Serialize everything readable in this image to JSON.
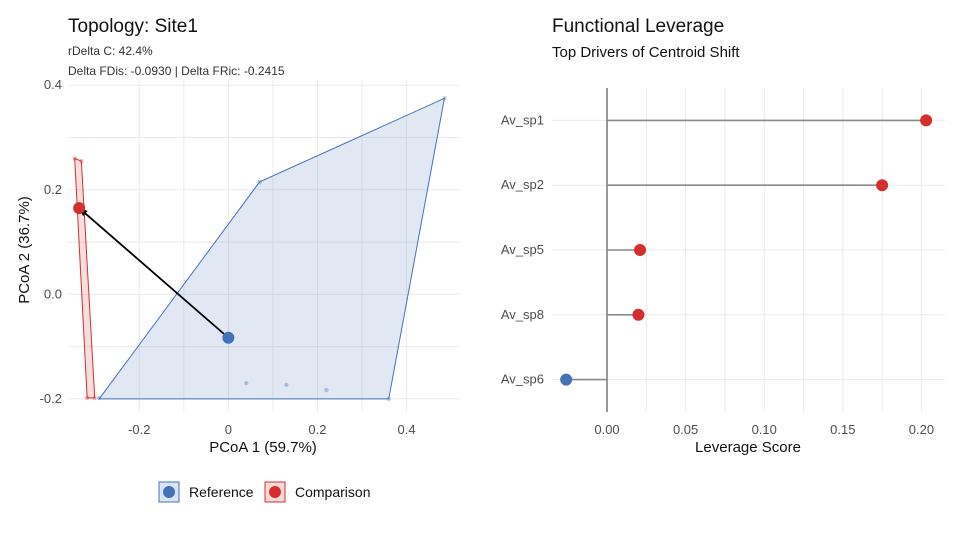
{
  "chart_data": [
    {
      "type": "scatter",
      "title": "Topology: Site1",
      "subtitle_lines": [
        "rDelta C: 42.4%",
        "Delta FDis: -0.0930 | Delta FRic: -0.2415"
      ],
      "xlabel": "PCoA 1 (59.7%)",
      "ylabel": "PCoA 2 (36.7%)",
      "xlim": [
        -0.36,
        0.52
      ],
      "ylim": [
        -0.225,
        0.41
      ],
      "xticks": [
        -0.2,
        0.0,
        0.2,
        0.4
      ],
      "xtick_labels": [
        "-0.2",
        "0",
        "0.2",
        "0.4"
      ],
      "yticks": [
        -0.2,
        0.0,
        0.2,
        0.4
      ],
      "ytick_labels": [
        "-0.2",
        "0.0",
        "0.2",
        "0.4"
      ],
      "grid": true,
      "series": [
        {
          "name": "Reference",
          "color": "#4472b8",
          "hull": [
            [
              -0.29,
              -0.2
            ],
            [
              0.36,
              -0.2
            ],
            [
              0.485,
              0.375
            ],
            [
              0.07,
              0.215
            ]
          ],
          "points": [
            [
              0.485,
              0.375
            ],
            [
              0.07,
              0.215
            ],
            [
              0.04,
              -0.17
            ],
            [
              0.13,
              -0.173
            ],
            [
              0.22,
              -0.183
            ],
            [
              -0.29,
              -0.198
            ],
            [
              0.36,
              -0.2
            ]
          ],
          "centroid": [
            0.0,
            -0.083
          ]
        },
        {
          "name": "Comparison",
          "color": "#d32f2f",
          "hull": [
            [
              -0.345,
              0.26
            ],
            [
              -0.33,
              0.255
            ],
            [
              -0.3,
              -0.198
            ],
            [
              -0.317,
              -0.198
            ]
          ],
          "points": [
            [
              -0.345,
              0.26
            ],
            [
              -0.33,
              0.255
            ],
            [
              -0.3,
              -0.198
            ],
            [
              -0.317,
              -0.198
            ]
          ],
          "centroid": [
            -0.335,
            0.165
          ]
        }
      ],
      "shift_arrow": {
        "from": [
          0.0,
          -0.083
        ],
        "to": [
          -0.335,
          0.165
        ]
      },
      "legend": {
        "placement": "bottom",
        "entries": [
          "Reference",
          "Comparison"
        ]
      }
    },
    {
      "type": "lollipop",
      "title": "Functional Leverage",
      "subtitle": "Top Drivers of Centroid Shift",
      "xlabel": "Leverage Score",
      "ylabel": "",
      "xlim": [
        -0.035,
        0.215
      ],
      "xticks": [
        0.0,
        0.05,
        0.1,
        0.15,
        0.2
      ],
      "xtick_labels": [
        "0.00",
        "0.05",
        "0.10",
        "0.15",
        "0.20"
      ],
      "grid": true,
      "categories": [
        "Av_sp1",
        "Av_sp2",
        "Av_sp5",
        "Av_sp8",
        "Av_sp6"
      ],
      "values": [
        0.203,
        0.175,
        0.021,
        0.02,
        -0.026
      ],
      "colors": {
        "positive": "#d32f2f",
        "negative": "#4472b8"
      }
    }
  ]
}
